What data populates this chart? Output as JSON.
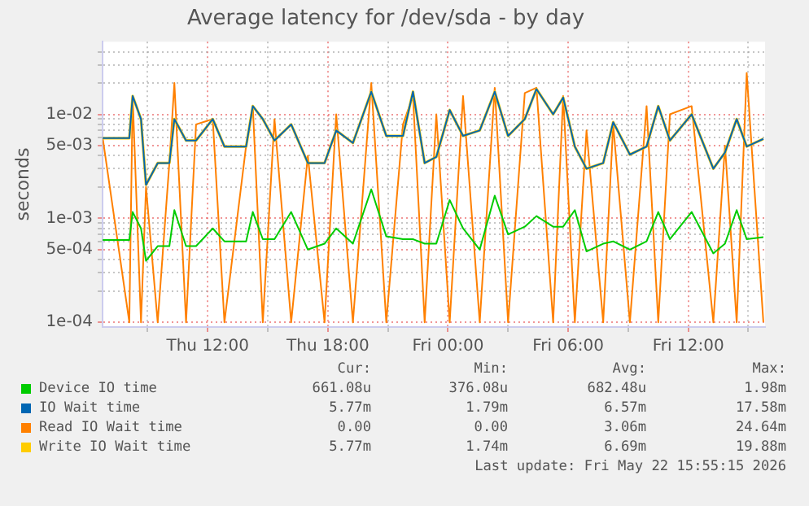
{
  "chart_data": {
    "type": "line",
    "title": "Average latency for /dev/sda - by day",
    "ylabel": "seconds",
    "log": "y",
    "grid": true,
    "legend": "bottom",
    "marker": "none",
    "line_style": "solid",
    "x": [
      "2026-05-21T06:45",
      "2026-05-21T08:05",
      "2026-05-21T08:15",
      "2026-05-21T08:40",
      "2026-05-21T08:55",
      "2026-05-21T09:30",
      "2026-05-21T10:05",
      "2026-05-21T10:20",
      "2026-05-21T10:55",
      "2026-05-21T11:25",
      "2026-05-21T12:15",
      "2026-05-21T12:50",
      "2026-05-21T13:55",
      "2026-05-21T14:15",
      "2026-05-21T14:45",
      "2026-05-21T15:20",
      "2026-05-21T16:10",
      "2026-05-21T17:00",
      "2026-05-21T17:50",
      "2026-05-21T18:25",
      "2026-05-21T19:15",
      "2026-05-21T20:10",
      "2026-05-21T20:55",
      "2026-05-21T21:45",
      "2026-05-21T22:15",
      "2026-05-21T22:50",
      "2026-05-21T23:25",
      "2026-05-22T00:05",
      "2026-05-22T00:45",
      "2026-05-22T01:35",
      "2026-05-22T02:20",
      "2026-05-22T03:00",
      "2026-05-22T03:50",
      "2026-05-22T04:25",
      "2026-05-22T05:15",
      "2026-05-22T05:45",
      "2026-05-22T06:20",
      "2026-05-22T06:55",
      "2026-05-22T07:45",
      "2026-05-22T08:15",
      "2026-05-22T09:05",
      "2026-05-22T09:55",
      "2026-05-22T10:30",
      "2026-05-22T11:05",
      "2026-05-22T12:10",
      "2026-05-22T13:15",
      "2026-05-22T13:50",
      "2026-05-22T14:25",
      "2026-05-22T14:55",
      "2026-05-22T15:45"
    ],
    "xlim": [
      "2026-05-21T06:45",
      "2026-05-22T15:50"
    ],
    "xticks": [
      {
        "value": "2026-05-21T09:00",
        "label": null
      },
      {
        "value": "2026-05-21T12:00",
        "label": "Thu 12:00"
      },
      {
        "value": "2026-05-21T15:00",
        "label": null
      },
      {
        "value": "2026-05-21T18:00",
        "label": "Thu 18:00"
      },
      {
        "value": "2026-05-21T21:00",
        "label": null
      },
      {
        "value": "2026-05-22T00:00",
        "label": "Fri 00:00"
      },
      {
        "value": "2026-05-22T03:00",
        "label": null
      },
      {
        "value": "2026-05-22T06:00",
        "label": "Fri 06:00"
      },
      {
        "value": "2026-05-22T09:00",
        "label": null
      },
      {
        "value": "2026-05-22T12:00",
        "label": "Fri 12:00"
      },
      {
        "value": "2026-05-22T15:00",
        "label": null
      }
    ],
    "ylim": [
      9e-05,
      0.05
    ],
    "yticks": [
      {
        "value": 0.0001,
        "label": "1e-04"
      },
      {
        "value": 0.0002,
        "label": null
      },
      {
        "value": 0.0003,
        "label": null
      },
      {
        "value": 0.0004,
        "label": null
      },
      {
        "value": 0.0005,
        "label": "5e-04"
      },
      {
        "value": 0.0006,
        "label": null
      },
      {
        "value": 0.0007,
        "label": null
      },
      {
        "value": 0.0008,
        "label": null
      },
      {
        "value": 0.0009,
        "label": null
      },
      {
        "value": 0.001,
        "label": "1e-03"
      },
      {
        "value": 0.002,
        "label": null
      },
      {
        "value": 0.003,
        "label": null
      },
      {
        "value": 0.004,
        "label": null
      },
      {
        "value": 0.005,
        "label": "5e-03"
      },
      {
        "value": 0.006,
        "label": null
      },
      {
        "value": 0.007,
        "label": null
      },
      {
        "value": 0.008,
        "label": null
      },
      {
        "value": 0.009,
        "label": null
      },
      {
        "value": 0.01,
        "label": "1e-02"
      },
      {
        "value": 0.02,
        "label": null
      },
      {
        "value": 0.03,
        "label": null
      },
      {
        "value": 0.04,
        "label": null
      }
    ],
    "series": [
      {
        "name": "Device IO time",
        "color": "#00cc00",
        "values": [
          0.00062,
          0.00062,
          0.00115,
          0.0008,
          0.00039,
          0.00054,
          0.00054,
          0.0012,
          0.00054,
          0.00054,
          0.0008,
          0.0006,
          0.0006,
          0.00115,
          0.00063,
          0.00063,
          0.00115,
          0.0005,
          0.00057,
          0.0008,
          0.00057,
          0.0019,
          0.00067,
          0.00063,
          0.00063,
          0.00057,
          0.00057,
          0.0015,
          0.0008,
          0.0005,
          0.00165,
          0.0007,
          0.00083,
          0.00105,
          0.00083,
          0.00083,
          0.0012,
          0.00048,
          0.00057,
          0.0006,
          0.0005,
          0.0006,
          0.00115,
          0.00063,
          0.00115,
          0.00046,
          0.00057,
          0.0012,
          0.00063,
          0.00066
        ]
      },
      {
        "name": "IO Wait time",
        "color": "#0066b3",
        "values": [
          0.0059,
          0.0059,
          0.015,
          0.009,
          0.0021,
          0.0034,
          0.0034,
          0.009,
          0.0056,
          0.0056,
          0.009,
          0.0049,
          0.0049,
          0.012,
          0.009,
          0.0056,
          0.008,
          0.0034,
          0.0034,
          0.007,
          0.0053,
          0.0165,
          0.0062,
          0.0062,
          0.0165,
          0.0034,
          0.0039,
          0.011,
          0.0062,
          0.007,
          0.0165,
          0.0062,
          0.009,
          0.0175,
          0.01,
          0.0145,
          0.0049,
          0.003,
          0.0034,
          0.0084,
          0.0041,
          0.0049,
          0.012,
          0.0056,
          0.01,
          0.003,
          0.0043,
          0.009,
          0.0049,
          0.0058
        ]
      },
      {
        "name": "Read IO Wait time",
        "color": "#ff8000",
        "values": [
          0.006,
          0.0001,
          0.015,
          0.0001,
          0.002,
          0.0001,
          0.0034,
          0.02,
          0.0001,
          0.008,
          0.009,
          0.0001,
          0.005,
          0.012,
          0.0001,
          0.009,
          0.0001,
          0.004,
          0.0001,
          0.01,
          0.0001,
          0.02,
          0.0001,
          0.008,
          0.015,
          0.0001,
          0.01,
          0.0001,
          0.015,
          0.0001,
          0.018,
          0.0001,
          0.016,
          0.018,
          0.0001,
          0.015,
          0.0001,
          0.007,
          0.0001,
          0.008,
          0.0001,
          0.012,
          0.0001,
          0.01,
          0.012,
          0.0001,
          0.005,
          0.0001,
          0.025,
          0.0001
        ]
      },
      {
        "name": "Write IO Wait time",
        "color": "#ffcc00",
        "values": [
          0.0059,
          0.0059,
          0.015,
          0.009,
          0.0021,
          0.0034,
          0.0034,
          0.009,
          0.0056,
          0.0056,
          0.009,
          0.0049,
          0.0049,
          0.012,
          0.009,
          0.0056,
          0.008,
          0.0034,
          0.0034,
          0.007,
          0.0053,
          0.0165,
          0.0062,
          0.0062,
          0.0165,
          0.0034,
          0.0039,
          0.011,
          0.0062,
          0.007,
          0.0165,
          0.0062,
          0.009,
          0.0175,
          0.01,
          0.0145,
          0.0049,
          0.003,
          0.0034,
          0.0084,
          0.0041,
          0.0049,
          0.012,
          0.0056,
          0.01,
          0.003,
          0.0043,
          0.009,
          0.0049,
          0.0058
        ]
      }
    ],
    "annotations": [
      "Cur:",
      "Min:",
      "Avg:",
      "Max:",
      "661.08u",
      "376.08u",
      "682.48u",
      "1.98m",
      "5.77m",
      "1.79m",
      "6.57m",
      "17.58m",
      "0.00",
      "0.00",
      "3.06m",
      "24.64m",
      "5.77m",
      "1.74m",
      "6.69m",
      "19.88m",
      "Last update: Fri May 22 15:55:15 2026"
    ]
  }
}
